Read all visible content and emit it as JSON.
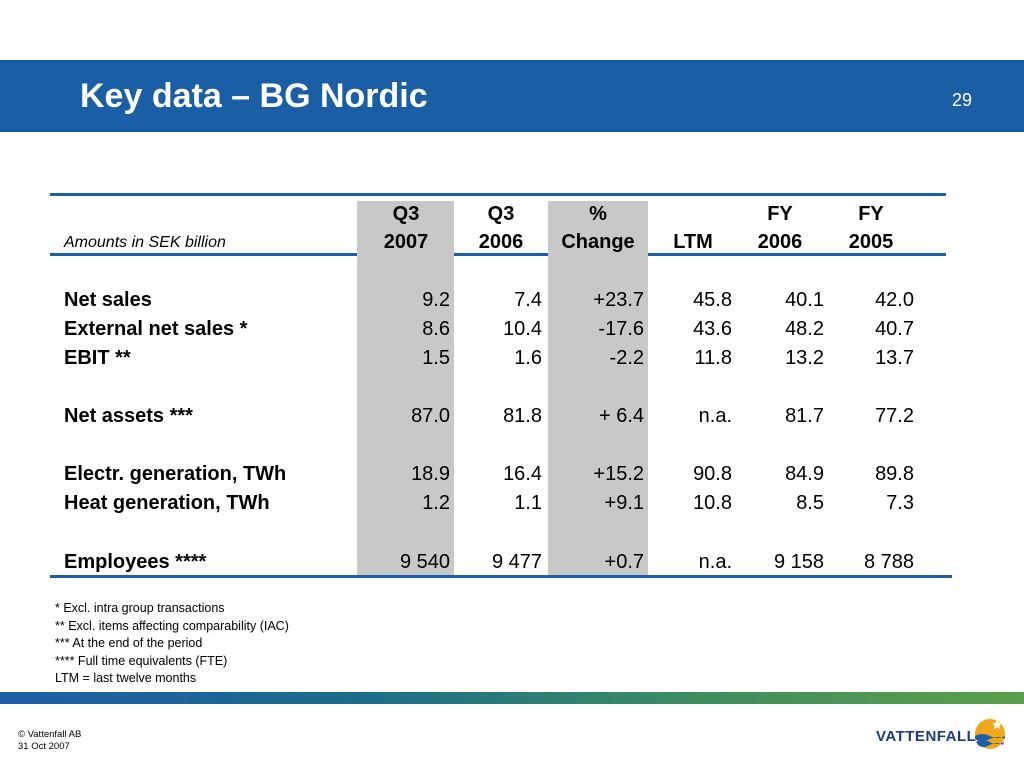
{
  "header": {
    "title": "Key data – BG Nordic",
    "page_number": "29"
  },
  "table": {
    "units_label": "Amounts in SEK billion",
    "columns": [
      {
        "line1": "Q3",
        "line2": "2007"
      },
      {
        "line1": "Q3",
        "line2": "2006"
      },
      {
        "line1": "%",
        "line2": "Change"
      },
      {
        "line1": "",
        "line2": "LTM"
      },
      {
        "line1": "FY",
        "line2": "2006"
      },
      {
        "line1": "FY",
        "line2": "2005"
      }
    ],
    "rows": [
      {
        "label": "Net sales",
        "values": [
          "9.2",
          "7.4",
          "+23.7",
          "45.8",
          "40.1",
          "42.0"
        ]
      },
      {
        "label": "External net sales *",
        "values": [
          "8.6",
          "10.4",
          "-17.6",
          "43.6",
          "48.2",
          "40.7"
        ]
      },
      {
        "label": "EBIT **",
        "values": [
          "1.5",
          "1.6",
          "-2.2",
          "11.8",
          "13.2",
          "13.7"
        ]
      },
      {
        "label": "Net assets ***",
        "values": [
          "87.0",
          "81.8",
          "+ 6.4",
          "n.a.",
          "81.7",
          "77.2"
        ]
      },
      {
        "label": "Electr. generation, TWh",
        "values": [
          "18.9",
          "16.4",
          "+15.2",
          "90.8",
          "84.9",
          "89.8"
        ]
      },
      {
        "label": "Heat generation, TWh",
        "values": [
          "1.2",
          "1.1",
          "+9.1",
          "10.8",
          "8.5",
          "7.3"
        ]
      },
      {
        "label": "Employees ****",
        "values": [
          "9 540",
          "9 477",
          "+0.7",
          "n.a.",
          "9 158",
          "8 788"
        ]
      }
    ]
  },
  "footnotes": [
    "*   Excl. intra group transactions",
    "**   Excl. items affecting comparability (IAC)",
    "***  At the end of the period",
    "**** Full time equivalents (FTE)",
    "LTM = last twelve months"
  ],
  "footer": {
    "copyright": "© Vattenfall AB",
    "date": "31 Oct 2007",
    "logo_text": "VATTENFALL"
  },
  "colors": {
    "brand_blue": "#1a5ea6",
    "shade_gray": "#c8c8c8"
  }
}
